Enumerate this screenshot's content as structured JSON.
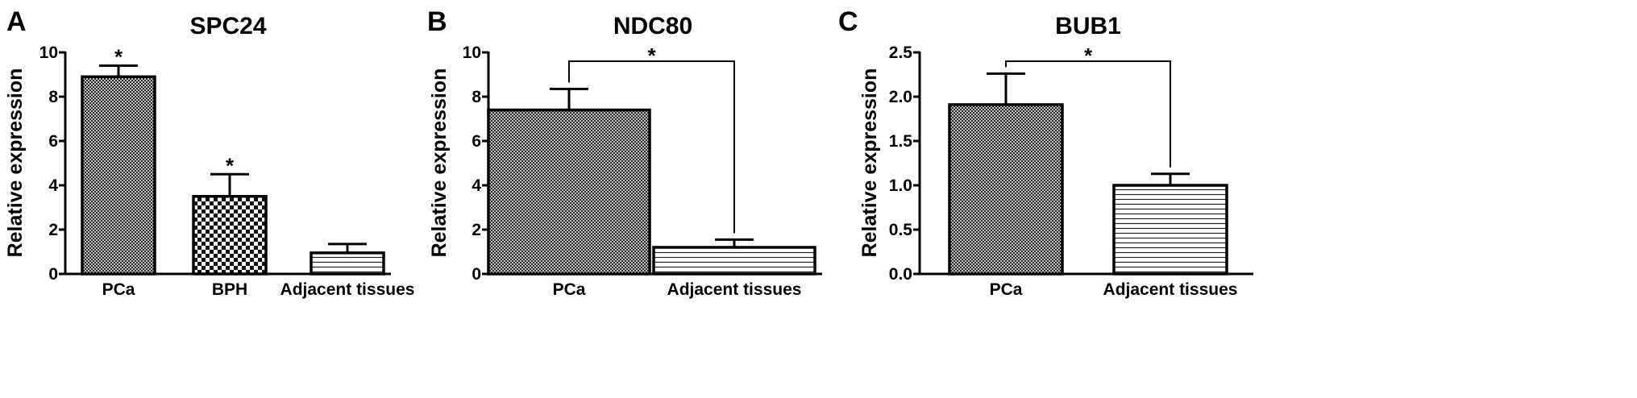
{
  "colors": {
    "ink": "#000000",
    "background": "#ffffff"
  },
  "chart_data": [
    {
      "panel": "A",
      "type": "bar",
      "title": "SPC24",
      "ylabel": "Relative expression",
      "xlabel": "",
      "ylim": [
        0,
        10
      ],
      "yticks": [
        0,
        2,
        4,
        6,
        8,
        10
      ],
      "ytick_labels": [
        "0",
        "2",
        "4",
        "6",
        "8",
        "10"
      ],
      "categories": [
        "PCa",
        "BPH",
        "Adjacent tissues"
      ],
      "values": [
        8.9,
        3.5,
        0.95
      ],
      "errors": [
        0.5,
        1.0,
        0.4
      ],
      "patterns": [
        "fine-dense",
        "checker",
        "horizontal"
      ],
      "significance": [
        {
          "type": "above",
          "index": 0,
          "label": "*"
        },
        {
          "type": "above",
          "index": 1,
          "label": "*"
        }
      ],
      "grid": false,
      "legend": "none"
    },
    {
      "panel": "B",
      "type": "bar",
      "title": "NDC80",
      "ylabel": "Relative expression",
      "xlabel": "",
      "ylim": [
        0,
        10
      ],
      "yticks": [
        0,
        2,
        4,
        6,
        8,
        10
      ],
      "ytick_labels": [
        "0",
        "2",
        "4",
        "6",
        "8",
        "10"
      ],
      "categories": [
        "PCa",
        "Adjacent tissues"
      ],
      "values": [
        7.4,
        1.2
      ],
      "errors": [
        0.95,
        0.35
      ],
      "patterns": [
        "fine-dense",
        "horizontal"
      ],
      "significance": [
        {
          "type": "bracket",
          "from": 0,
          "to": 1,
          "y": 9.6,
          "label": "*"
        }
      ],
      "grid": false,
      "legend": "none"
    },
    {
      "panel": "C",
      "type": "bar",
      "title": "BUB1",
      "ylabel": "Relative expression",
      "xlabel": "",
      "ylim": [
        0,
        2.5
      ],
      "yticks": [
        0,
        0.5,
        1.0,
        1.5,
        2.0,
        2.5
      ],
      "ytick_labels": [
        "0.0",
        "0.5",
        "1.0",
        "1.5",
        "2.0",
        "2.5"
      ],
      "categories": [
        "PCa",
        "Adjacent tissues"
      ],
      "values": [
        1.91,
        1.0
      ],
      "errors": [
        0.35,
        0.13
      ],
      "patterns": [
        "fine-dense",
        "horizontal"
      ],
      "significance": [
        {
          "type": "bracket",
          "from": 0,
          "to": 1,
          "y": 2.4,
          "label": "*"
        }
      ],
      "grid": false,
      "legend": "none"
    }
  ]
}
